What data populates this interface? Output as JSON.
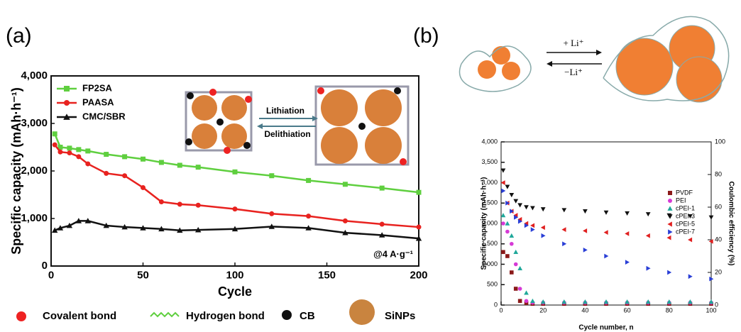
{
  "figure": {
    "panel_a": "(a)",
    "panel_b": "(b)",
    "lithiation": "Lithiation",
    "delithiation": "Delithiation",
    "plus_li": "+ Li⁺",
    "minus_li": "−Li⁺",
    "key": [
      "Covalent bond",
      "Hydrogen bond",
      "CB",
      "SiNPs"
    ]
  },
  "chart_data": [
    {
      "type": "line",
      "x_label": "Cycle",
      "y_label": "Specific capacity (mAh·h⁻¹)",
      "annotation": "@4 A·g⁻¹",
      "x": [
        2,
        5,
        10,
        15,
        20,
        30,
        40,
        50,
        60,
        70,
        80,
        100,
        120,
        140,
        160,
        180,
        200
      ],
      "series": [
        {
          "name": "FP2SA",
          "color": "#5fcf3f",
          "marker": "square",
          "values": [
            2780,
            2500,
            2480,
            2450,
            2420,
            2350,
            2300,
            2250,
            2180,
            2120,
            2080,
            1980,
            1900,
            1800,
            1720,
            1640,
            1550
          ]
        },
        {
          "name": "PAASA",
          "color": "#e8221f",
          "marker": "circle",
          "values": [
            2550,
            2400,
            2380,
            2300,
            2150,
            1950,
            1900,
            1650,
            1350,
            1300,
            1280,
            1200,
            1100,
            1050,
            950,
            880,
            820
          ]
        },
        {
          "name": "CMC/SBR",
          "color": "#111111",
          "marker": "triangle",
          "values": [
            750,
            800,
            850,
            950,
            950,
            850,
            820,
            800,
            780,
            750,
            760,
            780,
            830,
            800,
            700,
            650,
            580
          ]
        }
      ],
      "xlim": [
        0,
        200
      ],
      "xticks": [
        0,
        50,
        100,
        150,
        200
      ],
      "ylim": [
        0,
        4000
      ],
      "yticks": [
        0,
        {
          "value": 1000,
          "label": "1,000"
        },
        {
          "value": 2000,
          "label": "2,000"
        },
        {
          "value": 3000,
          "label": "3,000"
        },
        {
          "value": 4000,
          "label": "4,000"
        }
      ]
    },
    {
      "type": "scatter",
      "x_label": "Cycle number, n",
      "y_label": "Specific capacity (mAh·h⁻¹)",
      "y2_label": "Coulombic efficiency (%)",
      "x": [
        1,
        3,
        5,
        7,
        9,
        12,
        15,
        20,
        30,
        40,
        50,
        60,
        70,
        80,
        90,
        100
      ],
      "series": [
        {
          "name": "PVDF",
          "color": "#8b1a1a",
          "marker": "square",
          "values": [
            1300,
            1200,
            800,
            400,
            100,
            50,
            30,
            30,
            30,
            30,
            30,
            30,
            30,
            30,
            30,
            30
          ]
        },
        {
          "name": "PEI",
          "color": "#d63ad6",
          "marker": "circle",
          "values": [
            2000,
            1800,
            1500,
            1000,
            400,
            100,
            60,
            60,
            60,
            60,
            60,
            60,
            60,
            60,
            60,
            60
          ]
        },
        {
          "name": "cPEI-1",
          "color": "#1fa89a",
          "marker": "triangle",
          "values": [
            2200,
            2000,
            1700,
            1300,
            900,
            300,
            100,
            80,
            80,
            80,
            80,
            80,
            80,
            80,
            80,
            80
          ]
        },
        {
          "name": "cPEI-3",
          "color": "#111111",
          "marker": "down",
          "values": [
            3300,
            2900,
            2700,
            2550,
            2450,
            2400,
            2380,
            2350,
            2330,
            2300,
            2270,
            2250,
            2230,
            2200,
            2180,
            2150
          ]
        },
        {
          "name": "cPEI-5",
          "color": "#e02020",
          "marker": "left",
          "values": [
            3000,
            2500,
            2300,
            2200,
            2100,
            2000,
            1950,
            1900,
            1850,
            1820,
            1780,
            1750,
            1700,
            1650,
            1600,
            1560
          ]
        },
        {
          "name": "cPEI-7",
          "color": "#2a3fd6",
          "marker": "right",
          "values": [
            2800,
            2500,
            2300,
            2150,
            2050,
            1950,
            1850,
            1700,
            1500,
            1350,
            1200,
            1050,
            900,
            800,
            700,
            640
          ]
        }
      ],
      "xlim": [
        0,
        100
      ],
      "xticks": [
        0,
        20,
        40,
        60,
        80,
        100
      ],
      "ylim": [
        0,
        4000
      ],
      "yticks": [
        0,
        500,
        {
          "value": 1000,
          "label": "1,000"
        },
        {
          "value": 1500,
          "label": "1,500"
        },
        {
          "value": 2000,
          "label": "2,000"
        },
        {
          "value": 2500,
          "label": "2,500"
        },
        {
          "value": 3000,
          "label": "3,000"
        },
        {
          "value": 3500,
          "label": "3,500"
        },
        {
          "value": 4000,
          "label": "4,000"
        }
      ],
      "y2lim": [
        0,
        100
      ],
      "y2ticks": [
        0,
        20,
        40,
        60,
        80,
        100
      ]
    }
  ]
}
